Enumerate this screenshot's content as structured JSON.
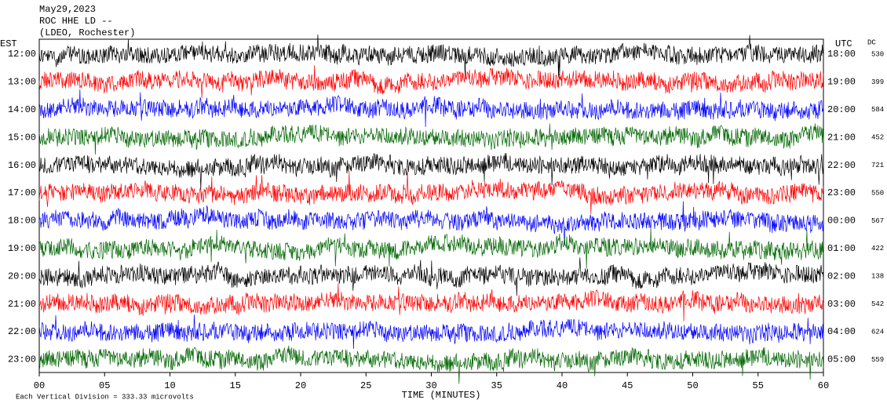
{
  "header": {
    "date": "May29,2023",
    "station": "ROC HHE LD --",
    "network": "(LDEO, Rochester)"
  },
  "left_axis_label": "EST",
  "right_axis_label": "UTC",
  "dc_label": "DC",
  "rows": [
    {
      "est": "12:00",
      "utc": "18:00",
      "dc": "530",
      "color": "#000000"
    },
    {
      "est": "13:00",
      "utc": "19:00",
      "dc": "399",
      "color": "#ff0000"
    },
    {
      "est": "14:00",
      "utc": "20:00",
      "dc": "584",
      "color": "#0000ff"
    },
    {
      "est": "15:00",
      "utc": "21:00",
      "dc": "452",
      "color": "#006600"
    },
    {
      "est": "16:00",
      "utc": "22:00",
      "dc": "721",
      "color": "#000000"
    },
    {
      "est": "17:00",
      "utc": "23:00",
      "dc": "550",
      "color": "#ff0000"
    },
    {
      "est": "18:00",
      "utc": "00:00",
      "dc": "567",
      "color": "#0000ff"
    },
    {
      "est": "19:00",
      "utc": "01:00",
      "dc": "422",
      "color": "#006600"
    },
    {
      "est": "20:00",
      "utc": "02:00",
      "dc": "138",
      "color": "#000000"
    },
    {
      "est": "21:00",
      "utc": "03:00",
      "dc": "542",
      "color": "#ff0000"
    },
    {
      "est": "22:00",
      "utc": "04:00",
      "dc": "624",
      "color": "#0000ff"
    },
    {
      "est": "23:00",
      "utc": "05:00",
      "dc": "559",
      "color": "#006600"
    }
  ],
  "x_ticks": [
    "00",
    "05",
    "10",
    "15",
    "20",
    "25",
    "30",
    "35",
    "40",
    "45",
    "50",
    "55",
    "60"
  ],
  "x_axis_label": "TIME (MINUTES)",
  "footer": "Each Vertical Division =  333.33 microvolts"
}
